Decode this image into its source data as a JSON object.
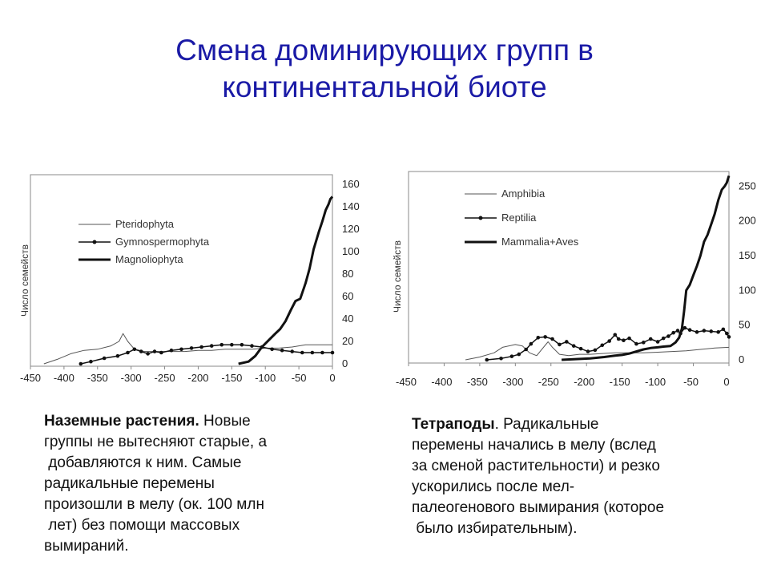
{
  "slide": {
    "title_line1": "Смена доминирующих групп в",
    "title_line2": "континентальной биоте",
    "title_color": "#1a1aa6"
  },
  "captions": {
    "left": {
      "lead": "Наземные растения.",
      "lines": [
        " Новые",
        "группы не вытесняют старые, а",
        " добавляются к ним. Самые",
        "радикальные перемены",
        "произошли в мелу (ок. 100 млн",
        " лет) без помощи массовых",
        "вымираний."
      ]
    },
    "right": {
      "lead": "Тетраподы",
      "lines": [
        ". Радикальные",
        "перемены начались в мелу (вслед",
        "за сменой растительности) и резко",
        "ускорились после мел-",
        "палеогенового вымирания (которое",
        " было избирательным)."
      ]
    }
  },
  "chart_data": [
    {
      "type": "line",
      "ylabel": "Число семейств",
      "xlim": [
        -450,
        0
      ],
      "ylim": [
        0,
        160
      ],
      "x_ticks": [
        -450,
        -400,
        -350,
        -300,
        -250,
        -200,
        -150,
        -100,
        -50,
        0
      ],
      "y_ticks": [
        0,
        20,
        40,
        60,
        80,
        100,
        120,
        140,
        160
      ],
      "y_axis_side": "right",
      "legend_position": "left",
      "series": [
        {
          "name": "Pteridophyta",
          "style": "thin",
          "points": [
            [
              -430,
              0
            ],
            [
              -410,
              4
            ],
            [
              -390,
              9
            ],
            [
              -370,
              12
            ],
            [
              -350,
              13
            ],
            [
              -330,
              16
            ],
            [
              -318,
              20
            ],
            [
              -312,
              27
            ],
            [
              -305,
              20
            ],
            [
              -295,
              13
            ],
            [
              -280,
              11
            ],
            [
              -260,
              11
            ],
            [
              -240,
              11
            ],
            [
              -220,
              11
            ],
            [
              -200,
              12
            ],
            [
              -180,
              12
            ],
            [
              -160,
              13
            ],
            [
              -140,
              13
            ],
            [
              -120,
              13
            ],
            [
              -100,
              14
            ],
            [
              -80,
              14
            ],
            [
              -60,
              15
            ],
            [
              -40,
              17
            ],
            [
              -20,
              17
            ],
            [
              0,
              17
            ]
          ]
        },
        {
          "name": "Gymnospermophyta",
          "style": "dots",
          "points": [
            [
              -375,
              0
            ],
            [
              -360,
              2
            ],
            [
              -340,
              5
            ],
            [
              -320,
              7
            ],
            [
              -305,
              10
            ],
            [
              -295,
              13
            ],
            [
              -285,
              11
            ],
            [
              -275,
              9
            ],
            [
              -265,
              11
            ],
            [
              -255,
              10
            ],
            [
              -240,
              12
            ],
            [
              -225,
              13
            ],
            [
              -210,
              14
            ],
            [
              -195,
              15
            ],
            [
              -180,
              16
            ],
            [
              -165,
              17
            ],
            [
              -150,
              17
            ],
            [
              -135,
              17
            ],
            [
              -120,
              16
            ],
            [
              -105,
              15
            ],
            [
              -90,
              13
            ],
            [
              -75,
              12
            ],
            [
              -60,
              11
            ],
            [
              -45,
              10
            ],
            [
              -30,
              10
            ],
            [
              -15,
              10
            ],
            [
              0,
              10
            ]
          ]
        },
        {
          "name": "Magnoliophyta",
          "style": "thick",
          "points": [
            [
              -140,
              0
            ],
            [
              -125,
              2
            ],
            [
              -115,
              7
            ],
            [
              -105,
              15
            ],
            [
              -95,
              21
            ],
            [
              -85,
              27
            ],
            [
              -78,
              31
            ],
            [
              -70,
              38
            ],
            [
              -62,
              48
            ],
            [
              -55,
              56
            ],
            [
              -48,
              58
            ],
            [
              -40,
              72
            ],
            [
              -34,
              85
            ],
            [
              -28,
              102
            ],
            [
              -20,
              118
            ],
            [
              -15,
              127
            ],
            [
              -10,
              137
            ],
            [
              -6,
              142
            ],
            [
              -3,
              147
            ],
            [
              0,
              149
            ]
          ]
        }
      ]
    },
    {
      "type": "line",
      "ylabel": "Число семейств",
      "xlim": [
        -450,
        0
      ],
      "ylim": [
        0,
        270
      ],
      "x_ticks": [
        -450,
        -400,
        -350,
        -300,
        -250,
        -200,
        -150,
        -100,
        -50,
        0
      ],
      "y_ticks": [
        0,
        50,
        100,
        150,
        200,
        250
      ],
      "y_axis_side": "right",
      "legend_position": "top-left",
      "series": [
        {
          "name": "Amphibia",
          "style": "thin",
          "points": [
            [
              -370,
              0
            ],
            [
              -350,
              4
            ],
            [
              -330,
              10
            ],
            [
              -318,
              18
            ],
            [
              -300,
              22
            ],
            [
              -290,
              20
            ],
            [
              -280,
              10
            ],
            [
              -270,
              6
            ],
            [
              -262,
              16
            ],
            [
              -254,
              26
            ],
            [
              -248,
              18
            ],
            [
              -238,
              8
            ],
            [
              -225,
              6
            ],
            [
              -210,
              8
            ],
            [
              -195,
              8
            ],
            [
              -180,
              9
            ],
            [
              -160,
              10
            ],
            [
              -140,
              10
            ],
            [
              -120,
              10
            ],
            [
              -100,
              11
            ],
            [
              -80,
              12
            ],
            [
              -60,
              13
            ],
            [
              -40,
              15
            ],
            [
              -20,
              17
            ],
            [
              0,
              18
            ]
          ]
        },
        {
          "name": "Reptilia",
          "style": "dots",
          "points": [
            [
              -340,
              0
            ],
            [
              -320,
              2
            ],
            [
              -305,
              5
            ],
            [
              -295,
              8
            ],
            [
              -285,
              15
            ],
            [
              -278,
              23
            ],
            [
              -268,
              32
            ],
            [
              -258,
              33
            ],
            [
              -248,
              30
            ],
            [
              -238,
              22
            ],
            [
              -228,
              26
            ],
            [
              -218,
              20
            ],
            [
              -208,
              16
            ],
            [
              -198,
              12
            ],
            [
              -188,
              14
            ],
            [
              -178,
              21
            ],
            [
              -168,
              27
            ],
            [
              -160,
              36
            ],
            [
              -155,
              30
            ],
            [
              -148,
              28
            ],
            [
              -140,
              31
            ],
            [
              -130,
              23
            ],
            [
              -120,
              25
            ],
            [
              -110,
              30
            ],
            [
              -100,
              26
            ],
            [
              -92,
              31
            ],
            [
              -85,
              34
            ],
            [
              -78,
              39
            ],
            [
              -72,
              42
            ],
            [
              -68,
              38
            ],
            [
              -62,
              46
            ],
            [
              -55,
              43
            ],
            [
              -45,
              40
            ],
            [
              -35,
              42
            ],
            [
              -25,
              41
            ],
            [
              -15,
              40
            ],
            [
              -8,
              44
            ],
            [
              -3,
              38
            ],
            [
              0,
              33
            ]
          ]
        },
        {
          "name": "Mammalia+Aves",
          "style": "thick",
          "points": [
            [
              -235,
              0
            ],
            [
              -215,
              1
            ],
            [
              -195,
              2
            ],
            [
              -175,
              4
            ],
            [
              -160,
              6
            ],
            [
              -150,
              7
            ],
            [
              -140,
              9
            ],
            [
              -130,
              12
            ],
            [
              -120,
              15
            ],
            [
              -110,
              17
            ],
            [
              -100,
              18
            ],
            [
              -92,
              19
            ],
            [
              -82,
              20
            ],
            [
              -75,
              25
            ],
            [
              -70,
              32
            ],
            [
              -66,
              45
            ],
            [
              -63,
              70
            ],
            [
              -60,
              100
            ],
            [
              -55,
              108
            ],
            [
              -50,
              122
            ],
            [
              -45,
              135
            ],
            [
              -40,
              150
            ],
            [
              -35,
              170
            ],
            [
              -30,
              180
            ],
            [
              -25,
              195
            ],
            [
              -20,
              210
            ],
            [
              -15,
              230
            ],
            [
              -10,
              245
            ],
            [
              -6,
              250
            ],
            [
              -3,
              255
            ],
            [
              0,
              265
            ]
          ]
        }
      ]
    }
  ]
}
